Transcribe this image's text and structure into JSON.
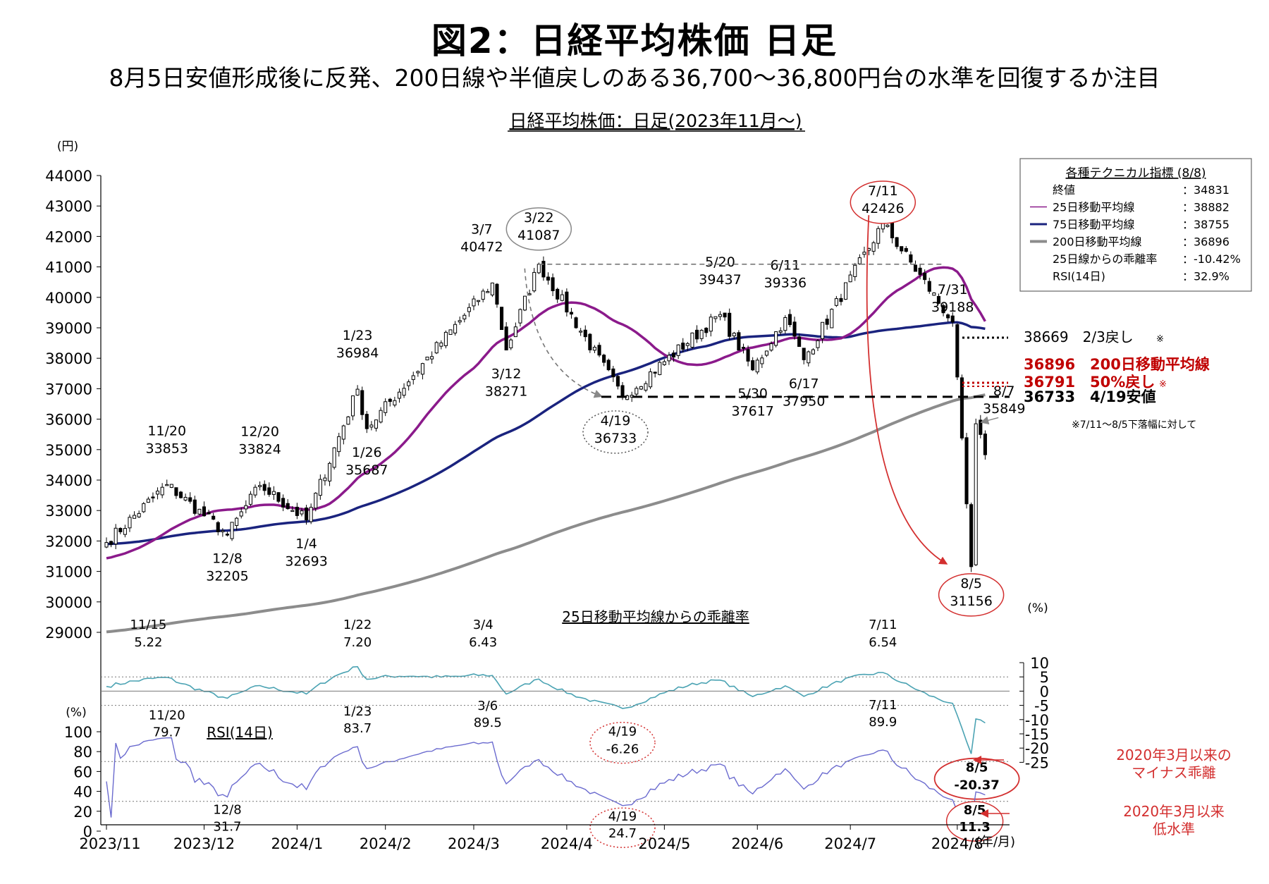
{
  "figure": {
    "title": "図2：日経平均株価 日足",
    "subtitle": "8月5日安値形成後に反発、200日線や半値戻しのある36,700～36,800円台の水準を回復するか注目",
    "chart_title": "日経平均株価：日足(2023年11月～)"
  },
  "chart_data": [
    {
      "type": "candlestick",
      "unit_label": "(円)",
      "ylim": [
        29000,
        44000
      ],
      "y_ticks": [
        "44000",
        "43000",
        "42000",
        "41000",
        "40000",
        "39000",
        "38000",
        "37000",
        "36000",
        "35000",
        "34000",
        "33000",
        "32000",
        "31000",
        "30000",
        "29000"
      ],
      "x_ticks": [
        "2023/11",
        "2023/12",
        "2024/1",
        "2024/2",
        "2024/3",
        "2024/4",
        "2024/5",
        "2024/6",
        "2024/7",
        "2024/8"
      ],
      "x_unit": "(年/月)",
      "ohlc_anchor_closes": [
        {
          "date": "2023/11/20",
          "value": 33853
        },
        {
          "date": "2023/12/8",
          "value": 32205
        },
        {
          "date": "2023/12/20",
          "value": 33824
        },
        {
          "date": "2024/1/4",
          "value": 32693
        },
        {
          "date": "2024/1/23",
          "value": 36984
        },
        {
          "date": "2024/1/26",
          "value": 35687
        },
        {
          "date": "2024/3/7",
          "value": 40472
        },
        {
          "date": "2024/3/12",
          "value": 38271
        },
        {
          "date": "2024/3/22",
          "value": 41087
        },
        {
          "date": "2024/4/19",
          "value": 36733
        },
        {
          "date": "2024/5/20",
          "value": 39437
        },
        {
          "date": "2024/5/30",
          "value": 37617
        },
        {
          "date": "2024/6/11",
          "value": 39336
        },
        {
          "date": "2024/6/17",
          "value": 37950
        },
        {
          "date": "2024/7/11",
          "value": 42426
        },
        {
          "date": "2024/7/31",
          "value": 39188
        },
        {
          "date": "2024/8/5",
          "value": 31156
        },
        {
          "date": "2024/8/7",
          "value": 35849
        }
      ],
      "annotations": [
        {
          "date": "11/20",
          "value": "33853"
        },
        {
          "date": "12/8",
          "value": "32205"
        },
        {
          "date": "12/20",
          "value": "33824"
        },
        {
          "date": "1/4",
          "value": "32693"
        },
        {
          "date": "1/23",
          "value": "36984"
        },
        {
          "date": "1/26",
          "value": "35687"
        },
        {
          "date": "3/7",
          "value": "40472"
        },
        {
          "date": "3/12",
          "value": "38271"
        },
        {
          "date": "3/22",
          "value": "41087"
        },
        {
          "date": "4/19",
          "value": "36733"
        },
        {
          "date": "5/20",
          "value": "39437"
        },
        {
          "date": "5/30",
          "value": "37617"
        },
        {
          "date": "6/11",
          "value": "39336"
        },
        {
          "date": "6/17",
          "value": "37950"
        },
        {
          "date": "7/11",
          "value": "42426"
        },
        {
          "date": "7/31",
          "value": "39188"
        },
        {
          "date": "8/5",
          "value": "31156"
        },
        {
          "date": "8/7",
          "value": "35849"
        }
      ],
      "moving_average_colors": {
        "ma25": "#8B1A8B",
        "ma75": "#1A237E",
        "ma200": "#8C8C8C"
      },
      "levels": [
        {
          "value": 38669,
          "label": "38669　2/3戻し",
          "mark": "※",
          "color": "#000000",
          "style": "dotted"
        },
        {
          "value": 36896,
          "label": "36896　200日移動平均線",
          "mark": "",
          "color": "#C00000",
          "style": "none"
        },
        {
          "value": 36791,
          "label": "36791　50%戻し",
          "mark": "※",
          "color": "#C00000",
          "style": "dotted"
        },
        {
          "value": 36733,
          "label": "36733　4/19安値",
          "mark": "",
          "color": "#000000",
          "style": "dashed"
        }
      ],
      "level_note": "※7/11～8/5下落幅に対して",
      "indicators": {
        "title": "各種テクニカル指標 (8/8)",
        "rows": [
          {
            "label": "終値",
            "value": "：34831",
            "legend": "none"
          },
          {
            "label": "25日移動平均線",
            "value": "：38882",
            "legend": "ma25"
          },
          {
            "label": "75日移動平均線",
            "value": "：38755",
            "legend": "ma75"
          },
          {
            "label": "200日移動平均線",
            "value": "：36896",
            "legend": "ma200"
          },
          {
            "label": "25日線からの乖離率",
            "value": "：-10.42%",
            "legend": "none"
          },
          {
            "label": "RSI(14日)",
            "value": "：32.9%",
            "legend": "none"
          }
        ]
      }
    },
    {
      "type": "line",
      "title": "25日移動平均線からの乖離率",
      "unit_label": "(%)",
      "ylim": [
        -25,
        10
      ],
      "y_ticks": [
        "10",
        "5",
        "0",
        "-5",
        "-10",
        "-15",
        "-20",
        "-25"
      ],
      "reference_lines": [
        5,
        -5
      ],
      "color": "#4BA3B3",
      "annotations": [
        {
          "date": "11/15",
          "value": "5.22"
        },
        {
          "date": "1/22",
          "value": "7.20"
        },
        {
          "date": "3/4",
          "value": "6.43"
        },
        {
          "date": "4/19",
          "value": "-6.26"
        },
        {
          "date": "7/11",
          "value": "6.54"
        },
        {
          "date": "8/5",
          "value": "-20.37"
        }
      ],
      "note": "2020年3月以来の\nマイナス乖離"
    },
    {
      "type": "line",
      "title": "RSI(14日)",
      "unit_label": "(%)",
      "ylim": [
        0,
        100
      ],
      "y_ticks": [
        "100",
        "80",
        "60",
        "40",
        "20",
        "0"
      ],
      "reference_lines": [
        70,
        30
      ],
      "color": "#6B6BCF",
      "annotations": [
        {
          "date": "11/20",
          "value": "79.7"
        },
        {
          "date": "12/8",
          "value": "31.7"
        },
        {
          "date": "1/23",
          "value": "83.7"
        },
        {
          "date": "3/6",
          "value": "89.5"
        },
        {
          "date": "4/19",
          "value": "24.7"
        },
        {
          "date": "7/11",
          "value": "89.9"
        },
        {
          "date": "8/5",
          "value": "11.3"
        }
      ],
      "note": "2020年3月以来\n低水準"
    }
  ]
}
